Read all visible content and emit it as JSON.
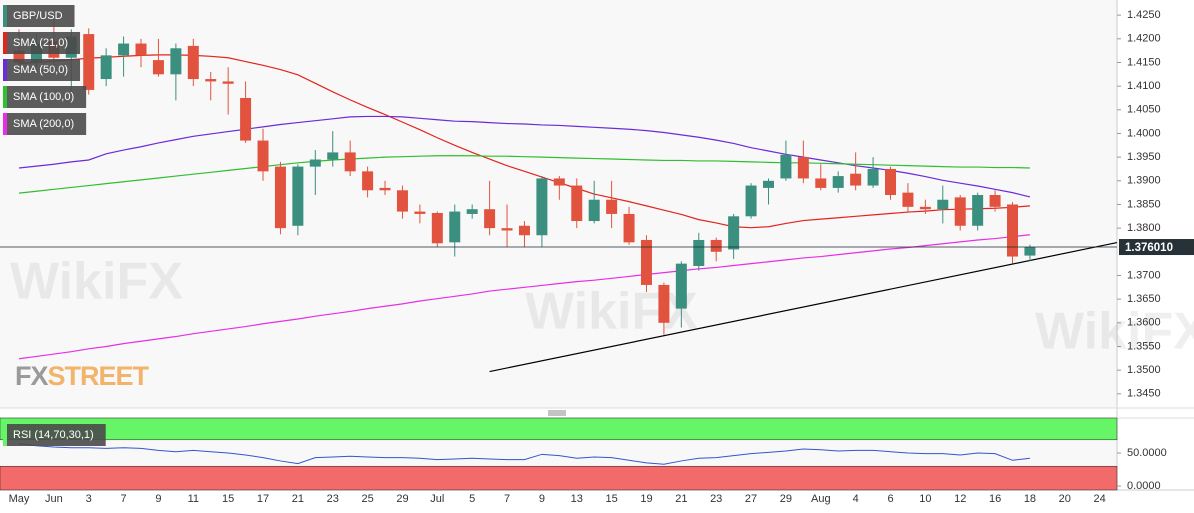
{
  "chart_data": {
    "type": "candlestick",
    "watermark": "WikiFX",
    "brand": [
      "FX",
      "STREET"
    ],
    "categories": [
      "May",
      null,
      "Jun",
      null,
      "3",
      null,
      "7",
      null,
      "9",
      null,
      "11",
      null,
      "15",
      null,
      "17",
      null,
      "21",
      null,
      "23",
      null,
      "25",
      null,
      "29",
      null,
      "Jul",
      null,
      "5",
      null,
      "7",
      null,
      "9",
      null,
      "13",
      null,
      "15",
      null,
      "19",
      null,
      "21",
      null,
      "23",
      null,
      "27",
      null,
      "29",
      null,
      "Aug",
      null,
      "4",
      null,
      "6",
      null,
      "10",
      null,
      "12",
      null,
      "16",
      null,
      "18",
      null,
      "20",
      null,
      "24"
    ],
    "ylim": [
      1.342,
      1.4282
    ],
    "yticks": [
      {
        "value": 1.425,
        "label": "1.4250"
      },
      {
        "value": 1.42,
        "label": "1.4200"
      },
      {
        "value": 1.415,
        "label": "1.4150"
      },
      {
        "value": 1.41,
        "label": "1.4100"
      },
      {
        "value": 1.405,
        "label": "1.4050"
      },
      {
        "value": 1.4,
        "label": "1.4000"
      },
      {
        "value": 1.395,
        "label": "1.3950"
      },
      {
        "value": 1.39,
        "label": "1.3900"
      },
      {
        "value": 1.385,
        "label": "1.3850"
      },
      {
        "value": 1.38,
        "label": "1.3800"
      },
      {
        "value": 1.37,
        "label": "1.3700"
      },
      {
        "value": 1.365,
        "label": "1.3650"
      },
      {
        "value": 1.36,
        "label": "1.3600"
      },
      {
        "value": 1.355,
        "label": "1.3550"
      },
      {
        "value": 1.35,
        "label": "1.3500"
      },
      {
        "value": 1.345,
        "label": "1.3450"
      }
    ],
    "grid": false,
    "last_price": {
      "value": 1.37601,
      "label": "1.376010",
      "color": "#263238"
    },
    "trendline": {
      "x": [
        27,
        62
      ],
      "y": [
        1.3497,
        1.3762
      ],
      "color": "#000000"
    },
    "series": [
      {
        "name": "GBP/USD",
        "type": "candlestick",
        "up_color": "#3b8f7f",
        "down_color": "#e2533f",
        "open": [
          1.4175,
          1.415,
          1.4195,
          1.416,
          1.421,
          1.4115,
          1.4165,
          1.419,
          1.4155,
          1.4125,
          1.4185,
          1.4115,
          1.411,
          1.4075,
          1.3985,
          1.393,
          1.3805,
          1.393,
          1.3945,
          1.396,
          1.392,
          1.3885,
          1.388,
          1.3835,
          1.3832,
          1.377,
          1.383,
          1.384,
          1.38,
          1.3805,
          1.3785,
          1.3905,
          1.389,
          1.3815,
          1.386,
          1.383,
          1.3775,
          1.368,
          1.363,
          1.372,
          1.3775,
          1.3755,
          1.3825,
          1.3885,
          1.3905,
          1.395,
          1.3905,
          1.3885,
          1.3915,
          1.389,
          1.3925,
          1.3875,
          1.3845,
          1.384,
          1.3865,
          1.3805,
          1.387,
          1.385,
          1.3742,
          null,
          null,
          null,
          null
        ],
        "high": [
          1.422,
          1.421,
          1.425,
          1.422,
          1.4222,
          1.418,
          1.4205,
          1.42,
          1.42,
          1.419,
          1.42,
          1.413,
          1.414,
          1.411,
          1.401,
          1.394,
          1.3935,
          1.3965,
          1.4005,
          1.3985,
          1.393,
          1.39,
          1.389,
          1.385,
          1.3835,
          1.385,
          1.385,
          1.39,
          1.385,
          1.3815,
          1.391,
          1.391,
          1.3905,
          1.39,
          1.39,
          1.3845,
          1.3785,
          1.3685,
          1.373,
          1.379,
          1.378,
          1.383,
          1.3895,
          1.3905,
          1.3985,
          1.3985,
          1.3935,
          1.392,
          1.396,
          1.395,
          1.393,
          1.3895,
          1.386,
          1.389,
          1.387,
          1.3875,
          1.388,
          1.3855,
          1.3765,
          null,
          null,
          null,
          null
        ],
        "low": [
          1.414,
          1.414,
          1.414,
          1.409,
          1.4082,
          1.41,
          1.412,
          1.414,
          1.412,
          1.407,
          1.41,
          1.407,
          1.404,
          1.398,
          1.39,
          1.3787,
          1.3785,
          1.387,
          1.393,
          1.391,
          1.3865,
          1.387,
          1.382,
          1.381,
          1.376,
          1.374,
          1.382,
          1.3785,
          1.376,
          1.376,
          1.376,
          1.386,
          1.38,
          1.381,
          1.38,
          1.3765,
          1.3665,
          1.3575,
          1.359,
          1.371,
          1.373,
          1.3735,
          1.382,
          1.385,
          1.39,
          1.3895,
          1.388,
          1.3875,
          1.388,
          1.3885,
          1.386,
          1.3835,
          1.383,
          1.381,
          1.3795,
          1.3795,
          1.3835,
          1.3725,
          1.373,
          null,
          null,
          null,
          null
        ],
        "close": [
          1.415,
          1.419,
          1.416,
          1.4205,
          1.4092,
          1.4165,
          1.419,
          1.4165,
          1.4125,
          1.418,
          1.4115,
          1.411,
          1.4105,
          1.3985,
          1.392,
          1.38,
          1.393,
          1.3945,
          1.396,
          1.392,
          1.388,
          1.388,
          1.3835,
          1.383,
          1.3768,
          1.3835,
          1.384,
          1.38,
          1.3795,
          1.3785,
          1.3905,
          1.389,
          1.3815,
          1.386,
          1.383,
          1.377,
          1.368,
          1.36,
          1.3725,
          1.3775,
          1.375,
          1.3825,
          1.389,
          1.39,
          1.3955,
          1.3905,
          1.3885,
          1.391,
          1.389,
          1.3925,
          1.387,
          1.3845,
          1.384,
          1.386,
          1.3805,
          1.387,
          1.3845,
          1.374,
          1.376,
          null,
          null,
          null,
          null
        ]
      },
      {
        "name": "SMA (21,0)",
        "type": "line",
        "color": "#e3241b",
        "values": [
          1.4148,
          1.415,
          1.4153,
          1.4156,
          1.4159,
          1.4161,
          1.4163,
          1.4165,
          1.4166,
          1.4166,
          1.4165,
          1.4163,
          1.416,
          1.4152,
          1.4144,
          1.4135,
          1.4124,
          1.4106,
          1.4088,
          1.4071,
          1.4055,
          1.404,
          1.4024,
          1.4008,
          1.3991,
          1.3975,
          1.396,
          1.3946,
          1.3932,
          1.392,
          1.3908,
          1.3896,
          1.3884,
          1.3872,
          1.3864,
          1.3856,
          1.3847,
          1.3838,
          1.3829,
          1.3818,
          1.3811,
          1.3803,
          1.3801,
          1.3803,
          1.381,
          1.3816,
          1.3819,
          1.3822,
          1.3825,
          1.3828,
          1.3831,
          1.3834,
          1.3836,
          1.3839,
          1.384,
          1.3841,
          1.3842,
          1.3844,
          1.3847,
          null,
          null,
          null,
          null
        ]
      },
      {
        "name": "SMA (50,0)",
        "type": "line",
        "color": "#6a2bd9",
        "values": [
          1.3927,
          1.3931,
          1.3935,
          1.394,
          1.3944,
          1.3957,
          1.3965,
          1.3972,
          1.398,
          1.3987,
          1.3994,
          1.3999,
          1.4004,
          1.4009,
          1.4014,
          1.4019,
          1.4023,
          1.4027,
          1.4031,
          1.4035,
          1.4036,
          1.4036,
          1.4035,
          1.4032,
          1.4029,
          1.4026,
          1.4025,
          1.4023,
          1.4021,
          1.402,
          1.4018,
          1.4017,
          1.4015,
          1.4013,
          1.4011,
          1.4009,
          1.4006,
          1.4002,
          1.3997,
          1.3992,
          1.3986,
          1.3979,
          1.397,
          1.3963,
          1.3956,
          1.395,
          1.3944,
          1.3938,
          1.3932,
          1.3927,
          1.3922,
          1.3916,
          1.3909,
          1.3901,
          1.3895,
          1.3889,
          1.3882,
          1.3875,
          1.3866,
          null,
          null,
          null,
          null
        ]
      },
      {
        "name": "SMA (100,0)",
        "type": "line",
        "color": "#2fbf2f",
        "values": [
          1.3874,
          1.3878,
          1.3882,
          1.3886,
          1.389,
          1.3894,
          1.3898,
          1.3902,
          1.3906,
          1.391,
          1.3914,
          1.3918,
          1.3922,
          1.3926,
          1.393,
          1.3934,
          1.3938,
          1.3941,
          1.3944,
          1.3946,
          1.3948,
          1.395,
          1.3951,
          1.3952,
          1.3953,
          1.3953,
          1.3953,
          1.3952,
          1.3952,
          1.3951,
          1.395,
          1.3949,
          1.3948,
          1.3947,
          1.3946,
          1.3945,
          1.3944,
          1.3943,
          1.3943,
          1.3942,
          1.3942,
          1.3941,
          1.394,
          1.3939,
          1.3938,
          1.3938,
          1.3937,
          1.3936,
          1.3935,
          1.3934,
          1.3933,
          1.3932,
          1.3931,
          1.393,
          1.3929,
          1.3929,
          1.3928,
          1.3928,
          1.3927,
          null,
          null,
          null,
          null
        ]
      },
      {
        "name": "SMA (200,0)",
        "type": "line",
        "color": "#e62fe6",
        "values": [
          1.3524,
          1.3529,
          1.3534,
          1.3539,
          1.3545,
          1.355,
          1.3556,
          1.3561,
          1.3566,
          1.3571,
          1.3577,
          1.3582,
          1.3587,
          1.3592,
          1.3598,
          1.3603,
          1.3608,
          1.3614,
          1.3619,
          1.3624,
          1.363,
          1.3635,
          1.364,
          1.3646,
          1.3651,
          1.3656,
          1.3661,
          1.3667,
          1.3671,
          1.3675,
          1.3679,
          1.3683,
          1.3687,
          1.369,
          1.3694,
          1.3698,
          1.3702,
          1.3706,
          1.371,
          1.3714,
          1.3717,
          1.3721,
          1.3725,
          1.3729,
          1.3733,
          1.3737,
          1.374,
          1.3744,
          1.3748,
          1.3752,
          1.3756,
          1.3759,
          1.3763,
          1.3767,
          1.3771,
          1.3775,
          1.3778,
          1.3782,
          1.3786,
          null,
          null,
          null,
          null
        ]
      }
    ],
    "rsi": {
      "name": "RSI (14,70,30,1)",
      "type": "line",
      "color": "#3355cc",
      "ylim": [
        -6,
        103
      ],
      "yticks": [
        {
          "value": 50,
          "label": "50.0000"
        },
        {
          "value": 0,
          "label": "0.0000"
        }
      ],
      "overbought": 70,
      "oversold": 30,
      "overbought_color": "#66f566",
      "oversold_color": "#f26a6a",
      "values": [
        64,
        61,
        59,
        58,
        58,
        57,
        58,
        57,
        54,
        52,
        54,
        52,
        50,
        47,
        43,
        38,
        34,
        43,
        44,
        45,
        44,
        43,
        43,
        42,
        40,
        41,
        42,
        41,
        40,
        40,
        48,
        46,
        42,
        44,
        43,
        39,
        35,
        33,
        38,
        42,
        43,
        46,
        49,
        51,
        53,
        56,
        55,
        53,
        54,
        54,
        52,
        50,
        49,
        49,
        47,
        50,
        49,
        39,
        42,
        null,
        null,
        null,
        null
      ]
    }
  }
}
